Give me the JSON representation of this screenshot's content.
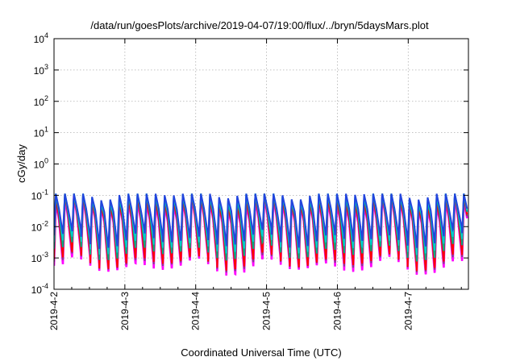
{
  "chart_data": {
    "type": "line",
    "title": "/data/run/goesPlots/archive/2019-04-07/19:00/flux/../bryn/5daysMars.plot",
    "xlabel": "Coordinated Universal Time (UTC)",
    "ylabel": "cGy/day",
    "yscale": "log",
    "ylim_exponents": [
      -4,
      4
    ],
    "y_ticks": [
      {
        "base": "10",
        "exp": "4"
      },
      {
        "base": "10",
        "exp": "3"
      },
      {
        "base": "10",
        "exp": "2"
      },
      {
        "base": "10",
        "exp": "1"
      },
      {
        "base": "10",
        "exp": "0"
      },
      {
        "base": "10",
        "exp": "-1"
      },
      {
        "base": "10",
        "exp": "-2"
      },
      {
        "base": "10",
        "exp": "-3"
      },
      {
        "base": "10",
        "exp": "-4"
      }
    ],
    "x_tick_labels": [
      "2019-4-2",
      "2019-4-3",
      "2019-4-4",
      "2019-4-5",
      "2019-4-6",
      "2019-4-7"
    ],
    "x_range_days": [
      0,
      5.85
    ],
    "grid": true,
    "series": [
      {
        "color": "#ff00ff",
        "base_log": -2.35,
        "peak_log": -1.35,
        "trough_log": -3.15
      },
      {
        "color": "#8b3a8b",
        "base_log": -2.3,
        "peak_log": -1.3,
        "trough_log": -3.05
      },
      {
        "color": "#ff0000",
        "base_log": -2.25,
        "peak_log": -1.25,
        "trough_log": -3.0
      },
      {
        "color": "#00aa88",
        "base_log": -2.1,
        "peak_log": -1.15,
        "trough_log": -2.7
      },
      {
        "color": "#00cccc",
        "base_log": -2.0,
        "peak_log": -1.1,
        "trough_log": -2.5
      },
      {
        "color": "#2244dd",
        "base_log": -1.9,
        "peak_log": -1.05,
        "trough_log": -2.3
      }
    ],
    "cycle_days": 0.128,
    "series_note": ""
  }
}
